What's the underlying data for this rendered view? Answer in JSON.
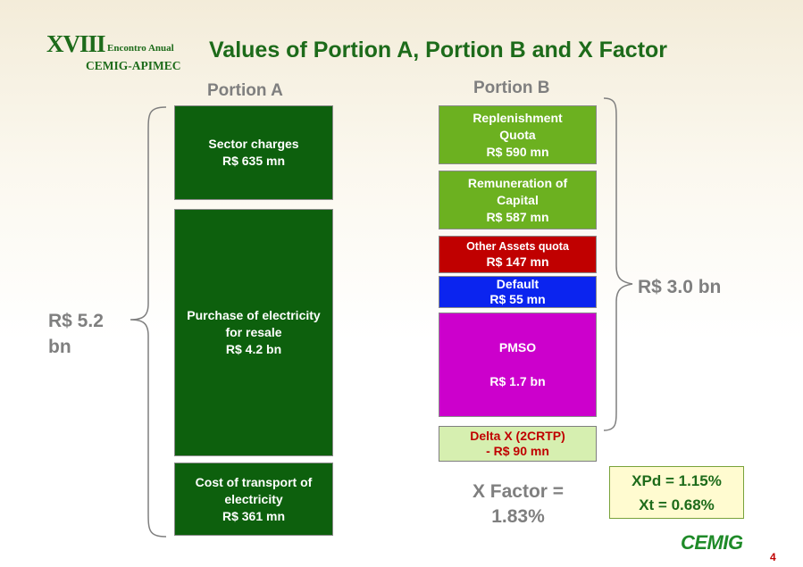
{
  "header": {
    "logo_line1": "XVIII",
    "logo_line2": "Encontro Anual",
    "logo_line3": "CEMIG-APIMEC",
    "title": "Values of Portion A, Portion B and X Factor"
  },
  "portion_a": {
    "heading": "Portion A",
    "total_line1": "R$ 5.2",
    "total_line2": "bn",
    "boxes": [
      {
        "line1": "Sector charges",
        "line2": "R$ 635 mn"
      },
      {
        "line1": "Purchase of electricity",
        "line2": "for resale",
        "line3": "R$ 4.2 bn"
      },
      {
        "line1": "Cost of transport of",
        "line2": "electricity",
        "line3": "R$ 361 mn"
      }
    ]
  },
  "portion_b": {
    "heading": "Portion B",
    "total": "R$ 3.0 bn",
    "boxes": [
      {
        "line1": "Replenishment",
        "line2": "Quota",
        "line3": "R$ 590 mn"
      },
      {
        "line1": "Remuneration of",
        "line2": "Capital",
        "line3": "R$ 587 mn"
      },
      {
        "line1": "Other Assets quota",
        "line2": "R$ 147 mn"
      },
      {
        "line1": "Default",
        "line2": "R$ 55 mn"
      },
      {
        "line1": "PMSO",
        "line2": "R$ 1.7 bn"
      },
      {
        "line1": "Delta X (2CRTP)",
        "line2": "- R$ 90 mn"
      }
    ]
  },
  "x_factor": {
    "line1": "X Factor =",
    "line2": "1.83%",
    "xpd": "XPd = 1.15%",
    "xt": "Xt = 0.68%"
  },
  "footer": {
    "logo": "CEMIG",
    "page": "4"
  },
  "colors": {
    "title_green": "#1d6b1a",
    "dark_green": "#0d600d",
    "light_green": "#6cb120",
    "red": "#c00000",
    "blue": "#0b24ef",
    "magenta": "#cc00cc",
    "pale_green": "#d6efb0",
    "gray_text": "#7f7f7f"
  }
}
